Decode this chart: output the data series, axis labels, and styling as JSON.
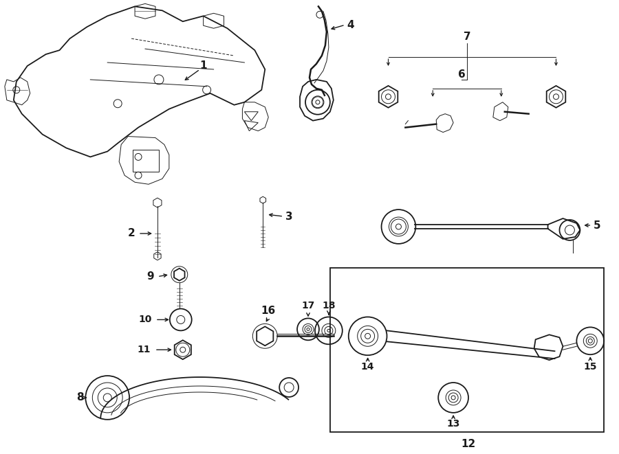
{
  "bg_color": "#ffffff",
  "line_color": "#1a1a1a",
  "fig_width": 9.0,
  "fig_height": 6.61,
  "dpi": 100
}
